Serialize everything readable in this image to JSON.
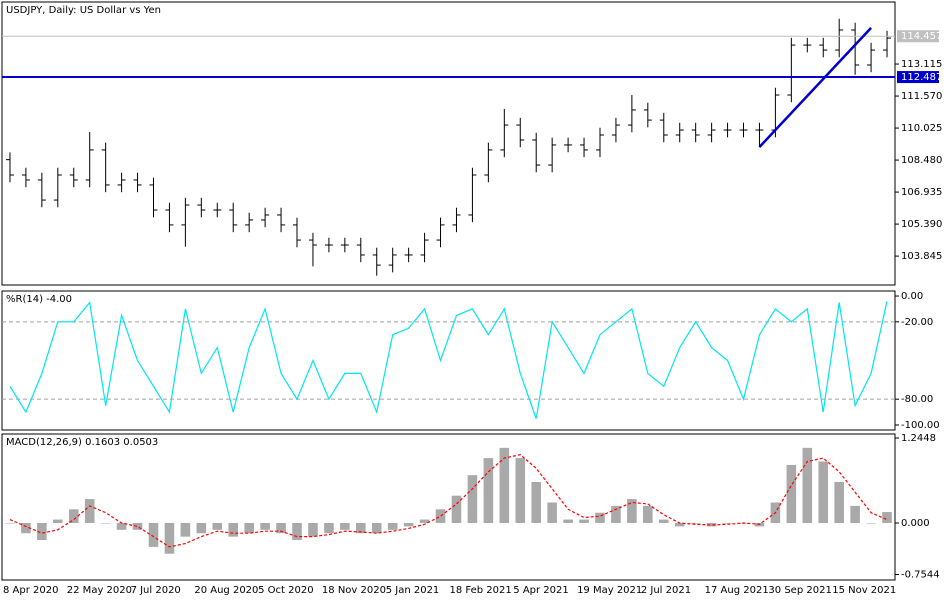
{
  "chart_data": [
    {
      "type": "ohlc",
      "title": "USDJPY, Daily:  US Dollar vs Yen",
      "color": "#000000",
      "categories": [
        "8 Apr 2020",
        null,
        null,
        null,
        "22 May 2020",
        null,
        null,
        null,
        "7 Jul 2020",
        null,
        null,
        null,
        "20 Aug 2020",
        null,
        null,
        null,
        "5 Oct 2020",
        null,
        null,
        null,
        "18 Nov 2020",
        null,
        null,
        null,
        "5 Jan 2021",
        null,
        null,
        null,
        "18 Feb 2021",
        null,
        null,
        null,
        "5 Apr 2021",
        null,
        null,
        null,
        "19 May 2021",
        null,
        null,
        null,
        "2 Jul 2021",
        null,
        null,
        null,
        "17 Aug 2021",
        null,
        null,
        null,
        "30 Sep 2021",
        null,
        null,
        null,
        "15 Nov 2021",
        null,
        null,
        null
      ],
      "open": [
        108.5,
        107.76,
        107.52,
        106.55,
        107.76,
        107.52,
        108.97,
        107.28,
        107.52,
        107.28,
        106.07,
        105.35,
        106.31,
        106.07,
        106.07,
        105.35,
        105.59,
        105.83,
        105.35,
        104.62,
        104.38,
        104.38,
        104.38,
        103.9,
        103.41,
        103.9,
        103.9,
        104.62,
        105.35,
        105.83,
        107.76,
        108.97,
        110.17,
        109.45,
        108.24,
        109.21,
        109.21,
        108.97,
        109.69,
        110.17,
        110.9,
        110.41,
        109.69,
        109.93,
        109.69,
        109.93,
        109.93,
        109.93,
        109.93,
        111.62,
        114.03,
        114.03,
        113.79,
        114.76,
        113.07,
        113.79
      ],
      "high": [
        108.85,
        108.11,
        107.87,
        108.11,
        108.11,
        109.83,
        109.32,
        107.87,
        107.87,
        107.63,
        106.42,
        106.66,
        106.66,
        106.42,
        106.42,
        105.94,
        106.18,
        106.18,
        105.7,
        104.97,
        104.73,
        104.73,
        104.73,
        104.25,
        104.25,
        104.25,
        104.97,
        105.7,
        106.18,
        108.11,
        109.32,
        110.95,
        110.52,
        109.8,
        109.56,
        109.56,
        109.56,
        110.04,
        110.52,
        111.62,
        111.25,
        110.76,
        110.28,
        110.28,
        110.28,
        110.28,
        110.28,
        110.28,
        111.97,
        114.38,
        114.38,
        114.38,
        115.3,
        115.11,
        114.14,
        114.72
      ],
      "low": [
        107.41,
        107.17,
        106.2,
        106.2,
        107.17,
        107.17,
        106.93,
        106.93,
        106.93,
        105.72,
        105.0,
        104.3,
        105.72,
        105.72,
        105.0,
        105.0,
        105.24,
        105.0,
        104.27,
        103.35,
        104.03,
        104.03,
        103.55,
        102.9,
        103.06,
        103.55,
        103.55,
        104.27,
        105.0,
        105.48,
        107.41,
        108.62,
        109.1,
        107.89,
        107.89,
        108.86,
        108.62,
        108.62,
        109.34,
        109.82,
        110.06,
        109.34,
        109.34,
        109.34,
        109.34,
        109.58,
        109.58,
        109.1,
        109.58,
        111.27,
        113.68,
        113.44,
        113.44,
        112.6,
        112.72,
        113.44
      ],
      "close": [
        107.76,
        107.52,
        106.55,
        107.76,
        107.52,
        108.97,
        107.28,
        107.52,
        107.28,
        106.07,
        105.35,
        106.31,
        106.07,
        106.07,
        105.35,
        105.59,
        105.83,
        105.35,
        104.62,
        104.38,
        104.38,
        104.38,
        103.9,
        103.41,
        103.9,
        103.9,
        104.62,
        105.35,
        105.83,
        107.76,
        108.97,
        110.17,
        109.45,
        108.24,
        109.21,
        109.21,
        108.97,
        109.69,
        110.17,
        110.9,
        110.41,
        109.69,
        109.93,
        109.69,
        109.93,
        109.93,
        109.93,
        109.93,
        111.62,
        114.03,
        114.03,
        113.79,
        114.76,
        113.07,
        113.79,
        114.37
      ],
      "ylim": [
        102.45,
        116.11
      ],
      "yticks": [
        103.845,
        {
          "value": 105.39,
          "label": "105.390"
        },
        106.935,
        {
          "value": 108.48,
          "label": "108.480"
        },
        110.025,
        {
          "value": 111.57,
          "label": "111.570"
        },
        113.115
      ],
      "price_line": {
        "value": 114.457,
        "color": "#c0c0c0"
      },
      "hline": {
        "value": 112.487,
        "color": "#0000cd"
      },
      "trendline": {
        "x": [
          47,
          54
        ],
        "y": [
          109.11,
          114.86
        ],
        "color": "#0000cd"
      }
    },
    {
      "type": "line",
      "title": "%R(14) -4.00",
      "color": "#00e5ee",
      "values": [
        -70,
        -90,
        -60,
        -20,
        -20,
        -5,
        -85,
        -15,
        -50,
        -70,
        -90,
        -10,
        -60,
        -40,
        -90,
        -40,
        -10,
        -60,
        -80,
        -50,
        -80,
        -60,
        -60,
        -90,
        -30,
        -25,
        -10,
        -50,
        -15,
        -10,
        -30,
        -10,
        -60,
        -95,
        -20,
        -40,
        -60,
        -30,
        -20,
        -10,
        -60,
        -70,
        -40,
        -20,
        -40,
        -50,
        -80,
        -30,
        -10,
        -20,
        -10,
        -90,
        -5,
        -85,
        -60,
        -4
      ],
      "ylim": [
        -103.9,
        3.9
      ],
      "yticks": [
        {
          "value": 0,
          "label": "0.00"
        },
        {
          "value": -20,
          "label": "-20.00"
        },
        {
          "value": -80,
          "label": "-80.00"
        },
        {
          "value": -100,
          "label": "-100.00"
        }
      ],
      "dashed_levels": [
        -20,
        -80
      ]
    },
    {
      "type": "macd",
      "title": "MACD(12,26,9) 0.1603 0.0503",
      "series": [
        {
          "type": "bar",
          "color": "#a9a9a9",
          "values": [
            0.0,
            -0.15,
            -0.25,
            0.05,
            0.2,
            0.35,
            0.0,
            -0.1,
            -0.1,
            -0.35,
            -0.45,
            -0.2,
            -0.15,
            -0.1,
            -0.2,
            -0.15,
            -0.1,
            -0.15,
            -0.25,
            -0.2,
            -0.15,
            -0.1,
            -0.15,
            -0.15,
            -0.1,
            -0.05,
            0.05,
            0.2,
            0.4,
            0.7,
            0.95,
            1.1,
            0.95,
            0.6,
            0.3,
            0.05,
            0.05,
            0.15,
            0.25,
            0.35,
            0.25,
            0.05,
            -0.05,
            0.0,
            -0.05,
            0.0,
            0.0,
            -0.05,
            0.3,
            0.85,
            1.1,
            0.9,
            0.6,
            0.25,
            0.0,
            0.16
          ]
        },
        {
          "type": "line",
          "color": "#ff0000",
          "values": [
            0.05,
            -0.05,
            -0.15,
            -0.1,
            0.05,
            0.25,
            0.15,
            0.0,
            -0.05,
            -0.2,
            -0.35,
            -0.3,
            -0.2,
            -0.12,
            -0.15,
            -0.15,
            -0.12,
            -0.12,
            -0.2,
            -0.2,
            -0.17,
            -0.12,
            -0.13,
            -0.15,
            -0.12,
            -0.08,
            -0.02,
            0.1,
            0.28,
            0.5,
            0.75,
            0.95,
            1.0,
            0.8,
            0.5,
            0.2,
            0.08,
            0.1,
            0.2,
            0.3,
            0.28,
            0.12,
            0.0,
            -0.02,
            -0.03,
            -0.02,
            0.0,
            -0.02,
            0.15,
            0.55,
            0.9,
            0.95,
            0.75,
            0.45,
            0.15,
            0.05
          ]
        }
      ],
      "ylim": [
        -0.835,
        1.303
      ],
      "yticks": [
        1.2448,
        {
          "value": 0,
          "label": "0.000"
        },
        -0.7544
      ]
    }
  ]
}
